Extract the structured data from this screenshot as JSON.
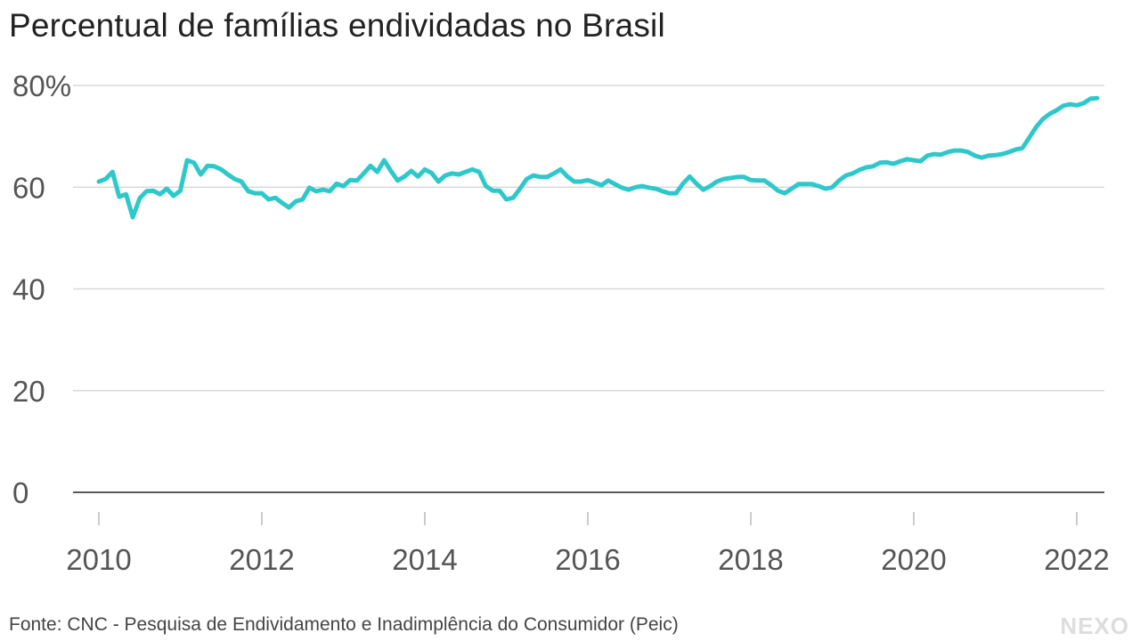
{
  "title": "Percentual de famílias endividadas no Brasil",
  "source": "Fonte: CNC - Pesquisa de Endividamento e Inadimplência do Consumidor (Peic)",
  "logo": "NEXO",
  "colors": {
    "line": "#2ec8cb",
    "grid": "#d9d9d9",
    "axis": "#222222"
  },
  "chart_data": {
    "type": "line",
    "title": "Percentual de famílias endividadas no Brasil",
    "xlabel": "",
    "ylabel": "",
    "ylim": [
      0,
      80
    ],
    "xlim": [
      "2010-01",
      "2022-04"
    ],
    "y_ticks": [
      {
        "value": 0,
        "label": "0"
      },
      {
        "value": 20,
        "label": "20"
      },
      {
        "value": 40,
        "label": "40"
      },
      {
        "value": 60,
        "label": "60"
      },
      {
        "value": 80,
        "label": "80%"
      }
    ],
    "x_ticks": [
      "2010",
      "2012",
      "2014",
      "2016",
      "2018",
      "2020",
      "2022"
    ],
    "grid": true,
    "start": "2010-01",
    "frequency": "monthly",
    "values": [
      61.1,
      61.6,
      63.0,
      58.1,
      58.6,
      54.1,
      57.8,
      59.2,
      59.3,
      58.6,
      59.7,
      58.3,
      59.3,
      65.3,
      64.8,
      62.5,
      64.2,
      64.1,
      63.5,
      62.5,
      61.6,
      61.1,
      59.2,
      58.8,
      58.8,
      57.6,
      57.9,
      56.9,
      56.0,
      57.2,
      57.6,
      59.9,
      59.2,
      59.5,
      59.2,
      60.7,
      60.2,
      61.4,
      61.3,
      62.7,
      64.2,
      63.0,
      65.3,
      63.2,
      61.3,
      62.1,
      63.2,
      62.1,
      63.5,
      62.8,
      61.1,
      62.3,
      62.7,
      62.5,
      63.0,
      63.5,
      63.0,
      60.2,
      59.3,
      59.3,
      57.6,
      57.9,
      59.7,
      61.6,
      62.3,
      62.0,
      62.0,
      62.7,
      63.5,
      62.1,
      61.1,
      61.1,
      61.4,
      60.9,
      60.4,
      61.3,
      60.6,
      59.9,
      59.5,
      60.0,
      60.2,
      59.9,
      59.7,
      59.2,
      58.8,
      58.8,
      60.7,
      62.1,
      60.7,
      59.5,
      60.2,
      61.1,
      61.6,
      61.8,
      62.0,
      62.0,
      61.4,
      61.3,
      61.3,
      60.4,
      59.3,
      58.8,
      59.7,
      60.6,
      60.6,
      60.6,
      60.2,
      59.7,
      60.0,
      61.3,
      62.3,
      62.7,
      63.4,
      63.9,
      64.1,
      64.8,
      64.9,
      64.6,
      65.1,
      65.5,
      65.3,
      65.1,
      66.2,
      66.5,
      66.4,
      66.9,
      67.2,
      67.2,
      66.9,
      66.2,
      65.8,
      66.2,
      66.3,
      66.5,
      66.9,
      67.4,
      67.7,
      69.7,
      71.8,
      73.4,
      74.4,
      75.1,
      76.0,
      76.3,
      76.1,
      76.5,
      77.4,
      77.5
    ]
  }
}
